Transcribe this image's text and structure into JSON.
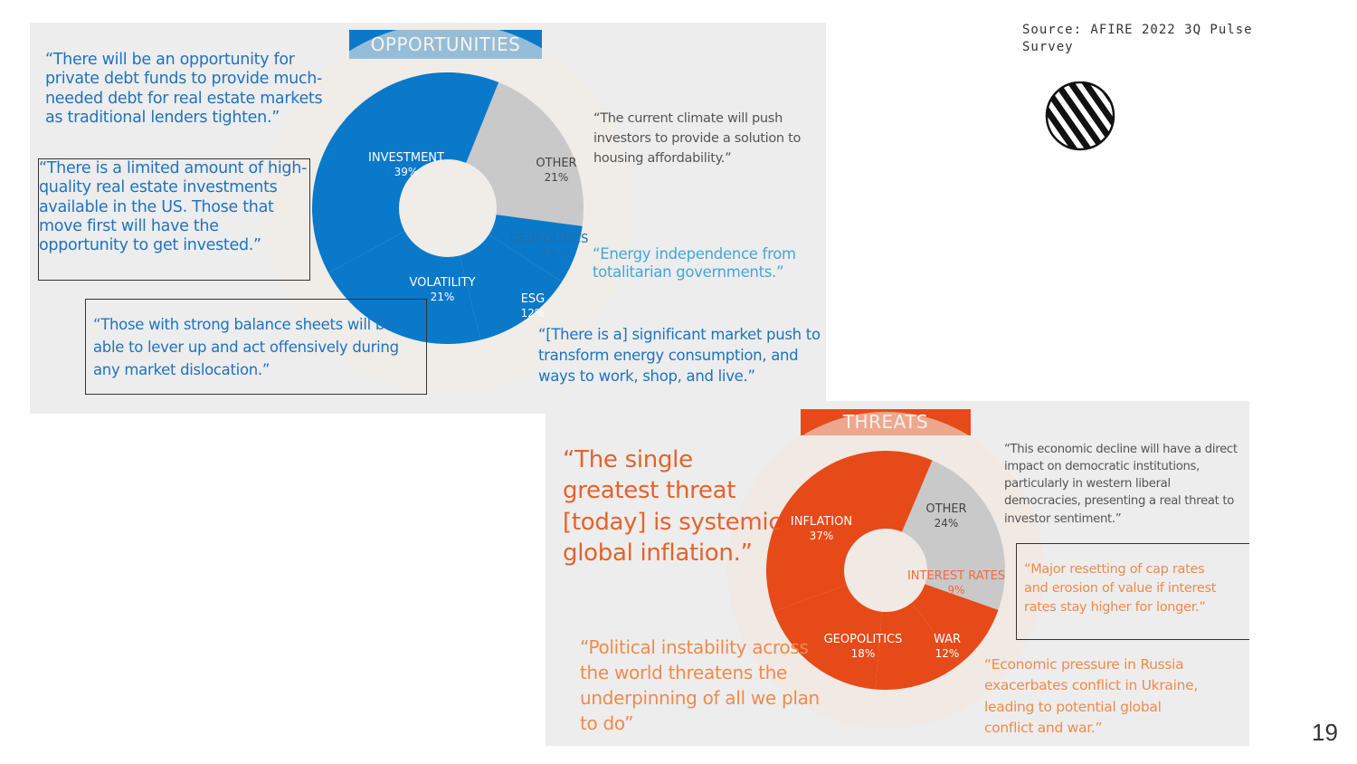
{
  "source": "Source:  AFIRE 2022 3Q Pulse Survey",
  "page_number": "19",
  "logo_icon": "striped-globe-icon",
  "colors": {
    "opportunity_blue": "#0a79c9",
    "opportunity_gray": "#c9c9c9",
    "threat_orange": "#e64a19",
    "threat_gray": "#c9c9c9"
  },
  "chart_data": [
    {
      "type": "pie",
      "title": "OPPORTUNITIES",
      "slices": [
        {
          "label": "OTHER",
          "value": 21,
          "value_label": "21%",
          "color": "#c9c9c9"
        },
        {
          "label": "GEOPOLITICS",
          "value": 7,
          "value_label": "7%",
          "color": "#0a79c9"
        },
        {
          "label": "ESG",
          "value": 12,
          "value_label": "12%",
          "color": "#0a79c9"
        },
        {
          "label": "VOLATILITY",
          "value": 21,
          "value_label": "21%",
          "color": "#0a79c9"
        },
        {
          "label": "INVESTMENT",
          "value": 39,
          "value_label": "39%",
          "color": "#0a79c9"
        }
      ],
      "quotes": [
        "“There will be an opportunity for private debt funds to provide much-needed debt for real estate markets as traditional lenders tighten.”",
        "“There is a limited amount of high-quality real estate investments available in the US. Those that move first will have the opportunity to get invested.”",
        "“Those with strong balance sheets will be able to lever up and act offensively during any market dislocation.”",
        "“The current climate will push investors to provide a solution to housing affordability.”",
        "“Energy independence from totalitarian governments.”",
        "“[There is a] significant market push to transform energy consumption, and ways to work, shop, and live.”"
      ]
    },
    {
      "type": "pie",
      "title": "THREATS",
      "slices": [
        {
          "label": "OTHER",
          "value": 24,
          "value_label": "24%",
          "color": "#c9c9c9"
        },
        {
          "label": "INTEREST RATES",
          "value": 9,
          "value_label": "9%",
          "color": "#e64a19"
        },
        {
          "label": "WAR",
          "value": 12,
          "value_label": "12%",
          "color": "#e64a19"
        },
        {
          "label": "GEOPOLITICS",
          "value": 18,
          "value_label": "18%",
          "color": "#e64a19"
        },
        {
          "label": "INFLATION",
          "value": 37,
          "value_label": "37%",
          "color": "#e64a19"
        }
      ],
      "quotes": [
        "“The single greatest threat [today] is systemic global inflation.”",
        "“Political instability across the world threatens the underpinning of all we plan to do”",
        "“This economic decline will have a direct impact on democratic institutions, particularly in western liberal democracies, presenting a real threat to investor sentiment.”",
        "“Major resetting of cap rates and erosion of value if interest rates stay higher for longer.”",
        "“Economic pressure in Russia exacerbates conflict in Ukraine, leading to potential global conflict and war.”"
      ]
    }
  ]
}
